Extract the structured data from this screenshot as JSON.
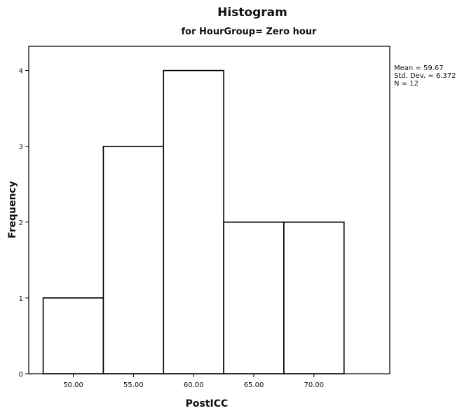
{
  "chart_data": {
    "type": "bar",
    "title": "Histogram",
    "subtitle": "for HourGroup= Zero hour",
    "xlabel": "PostICC",
    "ylabel": "Frequency",
    "categories": [
      "50.00",
      "55.00",
      "60.00",
      "65.00",
      "70.00"
    ],
    "bin_width": 5,
    "values": [
      1,
      3,
      4,
      2,
      2
    ],
    "xlim": [
      46.3,
      76.3
    ],
    "ylim": [
      0,
      4.32
    ],
    "y_ticks": [
      "0",
      "1",
      "2",
      "3",
      "4"
    ],
    "legend_placement": "right",
    "grid": false,
    "stats": {
      "mean": "Mean = 59.67",
      "std": "Std. Dev. = 6.372",
      "n": "N = 12"
    }
  }
}
